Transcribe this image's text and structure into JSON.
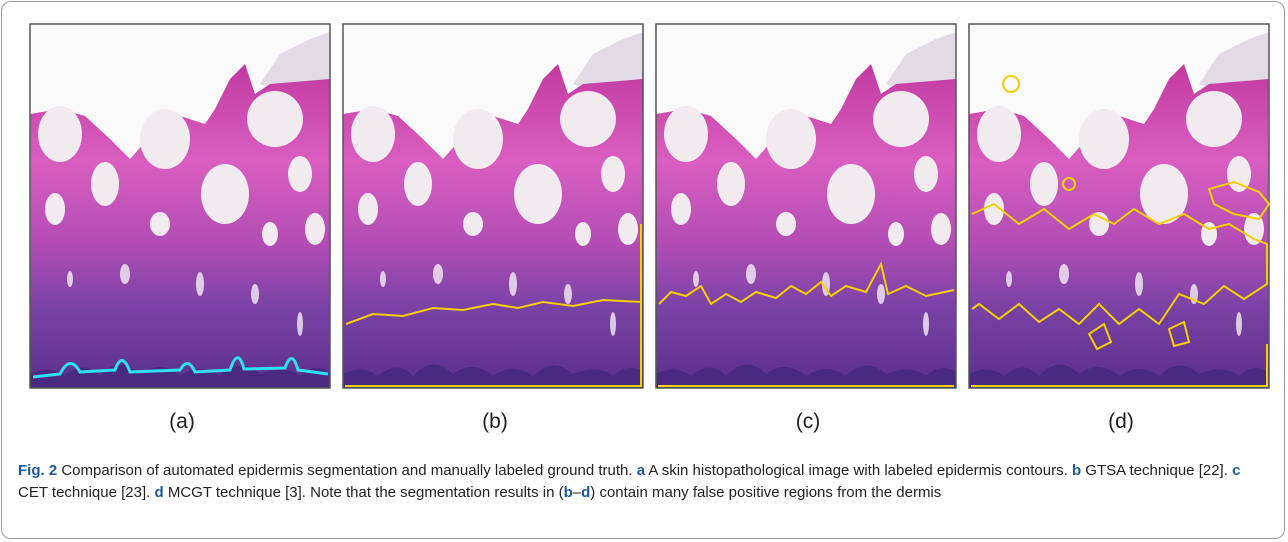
{
  "figure": {
    "panels": [
      {
        "label": "(a)"
      },
      {
        "label": "(b)"
      },
      {
        "label": "(c)"
      },
      {
        "label": "(d)"
      }
    ],
    "caption": [
      {
        "text": "Fig. 2",
        "bold": true
      },
      {
        "text": " Comparison of automated epidermis segmentation and manually labeled ground truth. "
      },
      {
        "text": "a",
        "bold": true
      },
      {
        "text": " A skin histopathological image with labeled epidermis contours. "
      },
      {
        "text": "b",
        "bold": true
      },
      {
        "text": " GTSA technique [22]. "
      },
      {
        "text": "c",
        "bold": true
      },
      {
        "text": " CET technique [23]. "
      },
      {
        "text": "d",
        "bold": true
      },
      {
        "text": " MCGT technique [3]. Note that the segmentation results in ("
      },
      {
        "text": "b",
        "bold": true
      },
      {
        "text": "–"
      },
      {
        "text": "d",
        "bold": true
      },
      {
        "text": ") contain many false positive regions from the dermis"
      }
    ]
  }
}
